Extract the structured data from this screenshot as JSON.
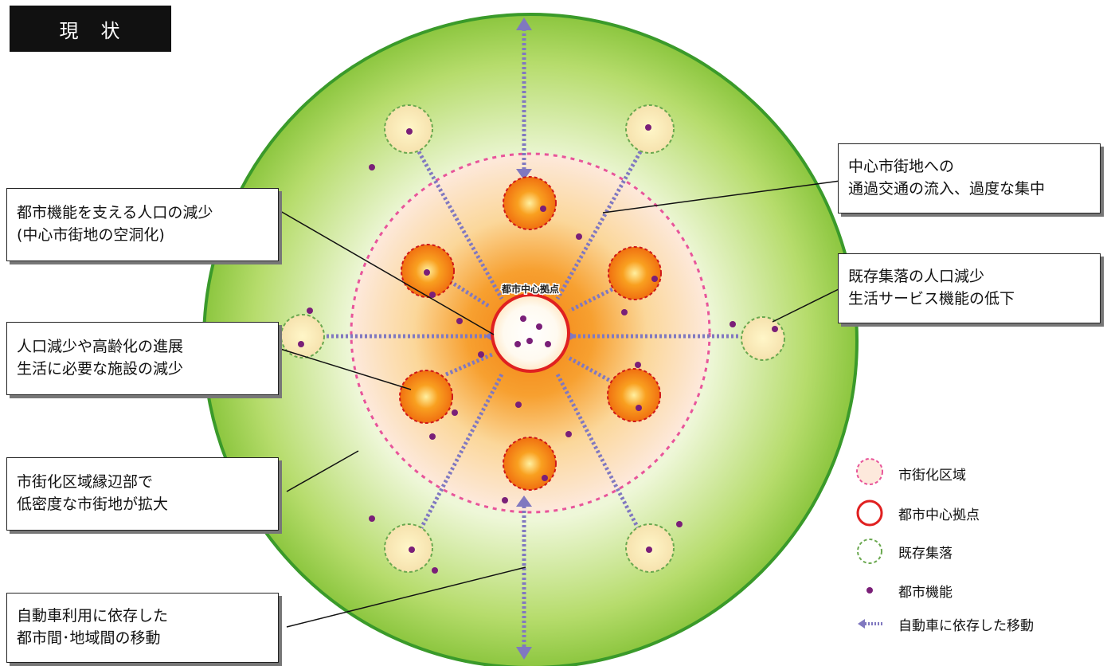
{
  "title": "現　状",
  "center_label": "都市中心拠点",
  "callouts": {
    "population_decline": [
      "都市機能を支える人口の減少",
      "(中心市街地の空洞化)"
    ],
    "aging": [
      "人口減少や高齢化の進展",
      "生活に必要な施設の減少"
    ],
    "sprawl": [
      "市街化区域縁辺部で",
      "低密度な市街地が拡大"
    ],
    "car_dependency": [
      "自動車利用に依存した",
      "都市間･地域間の移動"
    ],
    "through_traffic": [
      "中心市街地への",
      "通過交通の流入、過度な集中"
    ],
    "settlement_decline": [
      "既存集落の人口減少",
      "生活サービス機能の低下"
    ]
  },
  "legend": [
    {
      "symbol": "urbanization-area-icon",
      "label": "市街化区域"
    },
    {
      "symbol": "city-center-hub-icon",
      "label": "都市中心拠点"
    },
    {
      "symbol": "existing-settlement-icon",
      "label": "既存集落"
    },
    {
      "symbol": "urban-function-dot-icon",
      "label": "都市機能"
    },
    {
      "symbol": "car-dependent-movement-icon",
      "label": "自動車に依存した移動"
    }
  ],
  "colors": {
    "green_outer": "#8cc63f",
    "green_edge": "#3a9a2a",
    "urban_pink": "#e8559a",
    "hub_red": "#e02020",
    "hub_orange": "#f07010",
    "settlement_green": "#6aa84f",
    "dot_purple": "#7a1f78",
    "arrow_blue": "#8078c0"
  }
}
